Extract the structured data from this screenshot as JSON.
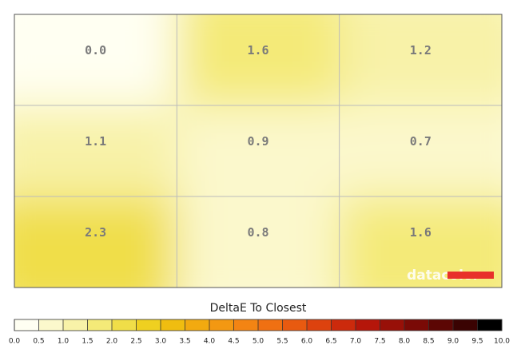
{
  "chart_data": {
    "type": "heatmap",
    "title": "DeltaE To Closest",
    "watermark": "datacolor",
    "rows": 3,
    "cols": 3,
    "values": [
      0.0,
      1.6,
      1.2,
      1.1,
      0.9,
      0.7,
      2.3,
      0.8,
      1.6
    ],
    "value_labels": [
      "0.0",
      "1.6",
      "1.2",
      "1.1",
      "0.9",
      "0.7",
      "2.3",
      "0.8",
      "1.6"
    ],
    "clim": [
      0,
      10
    ],
    "ticks": [
      {
        "value": 0,
        "label": "0.0"
      },
      0.5,
      {
        "value": 1,
        "label": "1.0"
      },
      1.5,
      {
        "value": 2,
        "label": "2.0"
      },
      2.5,
      {
        "value": 3,
        "label": "3.0"
      },
      3.5,
      {
        "value": 4,
        "label": "4.0"
      },
      4.5,
      {
        "value": 5,
        "label": "5.0"
      },
      5.5,
      {
        "value": 6,
        "label": "6.0"
      },
      6.5,
      {
        "value": 7,
        "label": "7.0"
      },
      7.5,
      {
        "value": 8,
        "label": "8.0"
      },
      8.5,
      {
        "value": 9,
        "label": "9.0"
      },
      9.5,
      {
        "value": 10,
        "label": "10.0"
      }
    ],
    "colors": [
      "#fffff2",
      "#fbf8cc",
      "#f8f2a8",
      "#f4ea78",
      "#f0de48",
      "#efd020",
      "#f0bd10",
      "#f2aa10",
      "#f39812",
      "#f38413",
      "#f07012",
      "#e85a10",
      "#dd420e",
      "#cc2a0c",
      "#b5160a",
      "#981008",
      "#7a0a06",
      "#5c0604",
      "#3a0302",
      "#000000"
    ],
    "grid": true
  }
}
